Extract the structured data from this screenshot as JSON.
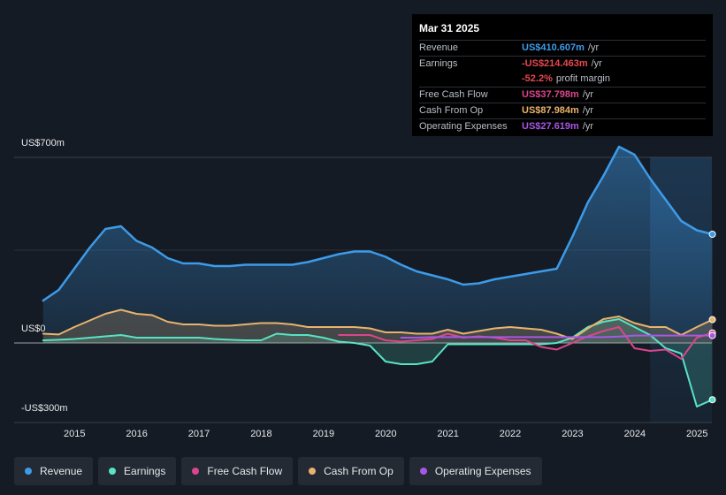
{
  "tooltip": {
    "date": "Mar 31 2025",
    "rows": [
      {
        "label": "Revenue",
        "value": "US$410.607m",
        "unit": "/yr",
        "color": "#3d9be9"
      },
      {
        "label": "Earnings",
        "value": "-US$214.463m",
        "unit": "/yr",
        "color": "#e8484e"
      },
      {
        "label": "",
        "value": "-52.2%",
        "unit": "profit margin",
        "color": "#e8484e"
      },
      {
        "label": "Free Cash Flow",
        "value": "US$37.798m",
        "unit": "/yr",
        "color": "#d9468b"
      },
      {
        "label": "Cash From Op",
        "value": "US$87.984m",
        "unit": "/yr",
        "color": "#e9b36c"
      },
      {
        "label": "Operating Expenses",
        "value": "US$27.619m",
        "unit": "/yr",
        "color": "#a757e8"
      }
    ]
  },
  "chart_data": {
    "type": "line",
    "title": "",
    "xlabel": "",
    "ylabel": "",
    "ylim": [
      -350,
      810
    ],
    "y_tick_labels": [
      "US$700m",
      "US$0",
      "-US$300m"
    ],
    "y_ticks": [
      700,
      0,
      -300
    ],
    "x_tick_labels": [
      "2015",
      "2016",
      "2017",
      "2018",
      "2019",
      "2020",
      "2021",
      "2022",
      "2023",
      "2024",
      "2025"
    ],
    "x_ticks": [
      2015,
      2016,
      2017,
      2018,
      2019,
      2020,
      2021,
      2022,
      2023,
      2024,
      2025
    ],
    "x_range": [
      2013.8,
      2025.25
    ],
    "highlight_from": 2024.25,
    "series": [
      {
        "name": "Revenue",
        "color": "#3d9be9",
        "fill": true,
        "x": [
          2014.5,
          2014.75,
          2015.0,
          2015.25,
          2015.5,
          2015.75,
          2016.0,
          2016.25,
          2016.5,
          2016.75,
          2017.0,
          2017.25,
          2017.5,
          2017.75,
          2018.0,
          2018.25,
          2018.5,
          2018.75,
          2019.0,
          2019.25,
          2019.5,
          2019.75,
          2020.0,
          2020.25,
          2020.5,
          2020.75,
          2021.0,
          2021.25,
          2021.5,
          2021.75,
          2022.0,
          2022.25,
          2022.5,
          2022.75,
          2023.0,
          2023.25,
          2023.5,
          2023.75,
          2024.0,
          2024.25,
          2024.5,
          2024.75,
          2025.0,
          2025.25
        ],
        "values": [
          160,
          200,
          280,
          360,
          430,
          440,
          385,
          360,
          320,
          300,
          300,
          290,
          290,
          295,
          295,
          295,
          295,
          305,
          320,
          335,
          345,
          345,
          325,
          295,
          270,
          255,
          240,
          220,
          225,
          240,
          250,
          260,
          270,
          280,
          400,
          530,
          630,
          740,
          710,
          620,
          540,
          460,
          425,
          410
        ]
      },
      {
        "name": "Earnings",
        "color": "#58e2c6",
        "fill": true,
        "x": [
          2014.5,
          2014.75,
          2015.0,
          2015.25,
          2015.5,
          2015.75,
          2016.0,
          2016.25,
          2016.5,
          2016.75,
          2017.0,
          2017.25,
          2017.5,
          2017.75,
          2018.0,
          2018.25,
          2018.5,
          2018.75,
          2019.0,
          2019.25,
          2019.5,
          2019.75,
          2020.0,
          2020.25,
          2020.5,
          2020.75,
          2021.0,
          2021.25,
          2021.5,
          2021.75,
          2022.0,
          2022.25,
          2022.5,
          2022.75,
          2023.0,
          2023.25,
          2023.5,
          2023.75,
          2024.0,
          2024.25,
          2024.5,
          2024.75,
          2025.0,
          2025.25
        ],
        "values": [
          10,
          12,
          15,
          20,
          25,
          30,
          20,
          20,
          20,
          20,
          20,
          15,
          12,
          10,
          10,
          35,
          30,
          30,
          20,
          5,
          0,
          -10,
          -70,
          -80,
          -80,
          -70,
          -5,
          -5,
          -5,
          -5,
          -5,
          -5,
          -5,
          0,
          20,
          60,
          80,
          90,
          60,
          30,
          -20,
          -40,
          -240,
          -214
        ]
      },
      {
        "name": "Free Cash Flow",
        "color": "#d9468b",
        "fill": false,
        "x": [
          2019.25,
          2019.5,
          2019.75,
          2020.0,
          2020.25,
          2020.5,
          2020.75,
          2021.0,
          2021.25,
          2021.5,
          2021.75,
          2022.0,
          2022.25,
          2022.5,
          2022.75,
          2023.0,
          2023.25,
          2023.5,
          2023.75,
          2024.0,
          2024.25,
          2024.5,
          2024.75,
          2025.0,
          2025.25
        ],
        "values": [
          30,
          30,
          30,
          10,
          5,
          10,
          15,
          35,
          20,
          25,
          20,
          10,
          10,
          -15,
          -25,
          0,
          25,
          45,
          60,
          -20,
          -30,
          -25,
          -60,
          20,
          38
        ]
      },
      {
        "name": "Cash From Op",
        "color": "#e9b36c",
        "fill": true,
        "x": [
          2014.5,
          2014.75,
          2015.0,
          2015.25,
          2015.5,
          2015.75,
          2016.0,
          2016.25,
          2016.5,
          2016.75,
          2017.0,
          2017.25,
          2017.5,
          2017.75,
          2018.0,
          2018.25,
          2018.5,
          2018.75,
          2019.0,
          2019.25,
          2019.5,
          2019.75,
          2020.0,
          2020.25,
          2020.5,
          2020.75,
          2021.0,
          2021.25,
          2021.5,
          2021.75,
          2022.0,
          2022.25,
          2022.5,
          2022.75,
          2023.0,
          2023.25,
          2023.5,
          2023.75,
          2024.0,
          2024.25,
          2024.5,
          2024.75,
          2025.0,
          2025.25
        ],
        "values": [
          35,
          32,
          60,
          85,
          110,
          125,
          110,
          105,
          80,
          70,
          70,
          65,
          65,
          70,
          75,
          75,
          70,
          60,
          60,
          60,
          60,
          55,
          40,
          40,
          35,
          35,
          50,
          35,
          45,
          55,
          60,
          55,
          50,
          35,
          15,
          55,
          90,
          100,
          75,
          60,
          60,
          30,
          60,
          88
        ]
      },
      {
        "name": "Operating Expenses",
        "color": "#a757e8",
        "fill": false,
        "x": [
          2020.25,
          2020.5,
          2020.75,
          2021.0,
          2021.25,
          2021.5,
          2021.75,
          2022.0,
          2022.25,
          2022.5,
          2022.75,
          2023.0,
          2023.25,
          2023.5,
          2023.75,
          2024.0,
          2024.25,
          2024.5,
          2024.75,
          2025.0,
          2025.25
        ],
        "values": [
          20,
          20,
          22,
          22,
          22,
          22,
          22,
          22,
          22,
          22,
          22,
          22,
          22,
          22,
          24,
          28,
          28,
          28,
          28,
          28,
          28
        ]
      }
    ]
  },
  "legend": [
    {
      "label": "Revenue",
      "color": "#3d9be9"
    },
    {
      "label": "Earnings",
      "color": "#58e2c6"
    },
    {
      "label": "Free Cash Flow",
      "color": "#d9468b"
    },
    {
      "label": "Cash From Op",
      "color": "#e9b36c"
    },
    {
      "label": "Operating Expenses",
      "color": "#a757e8"
    }
  ]
}
